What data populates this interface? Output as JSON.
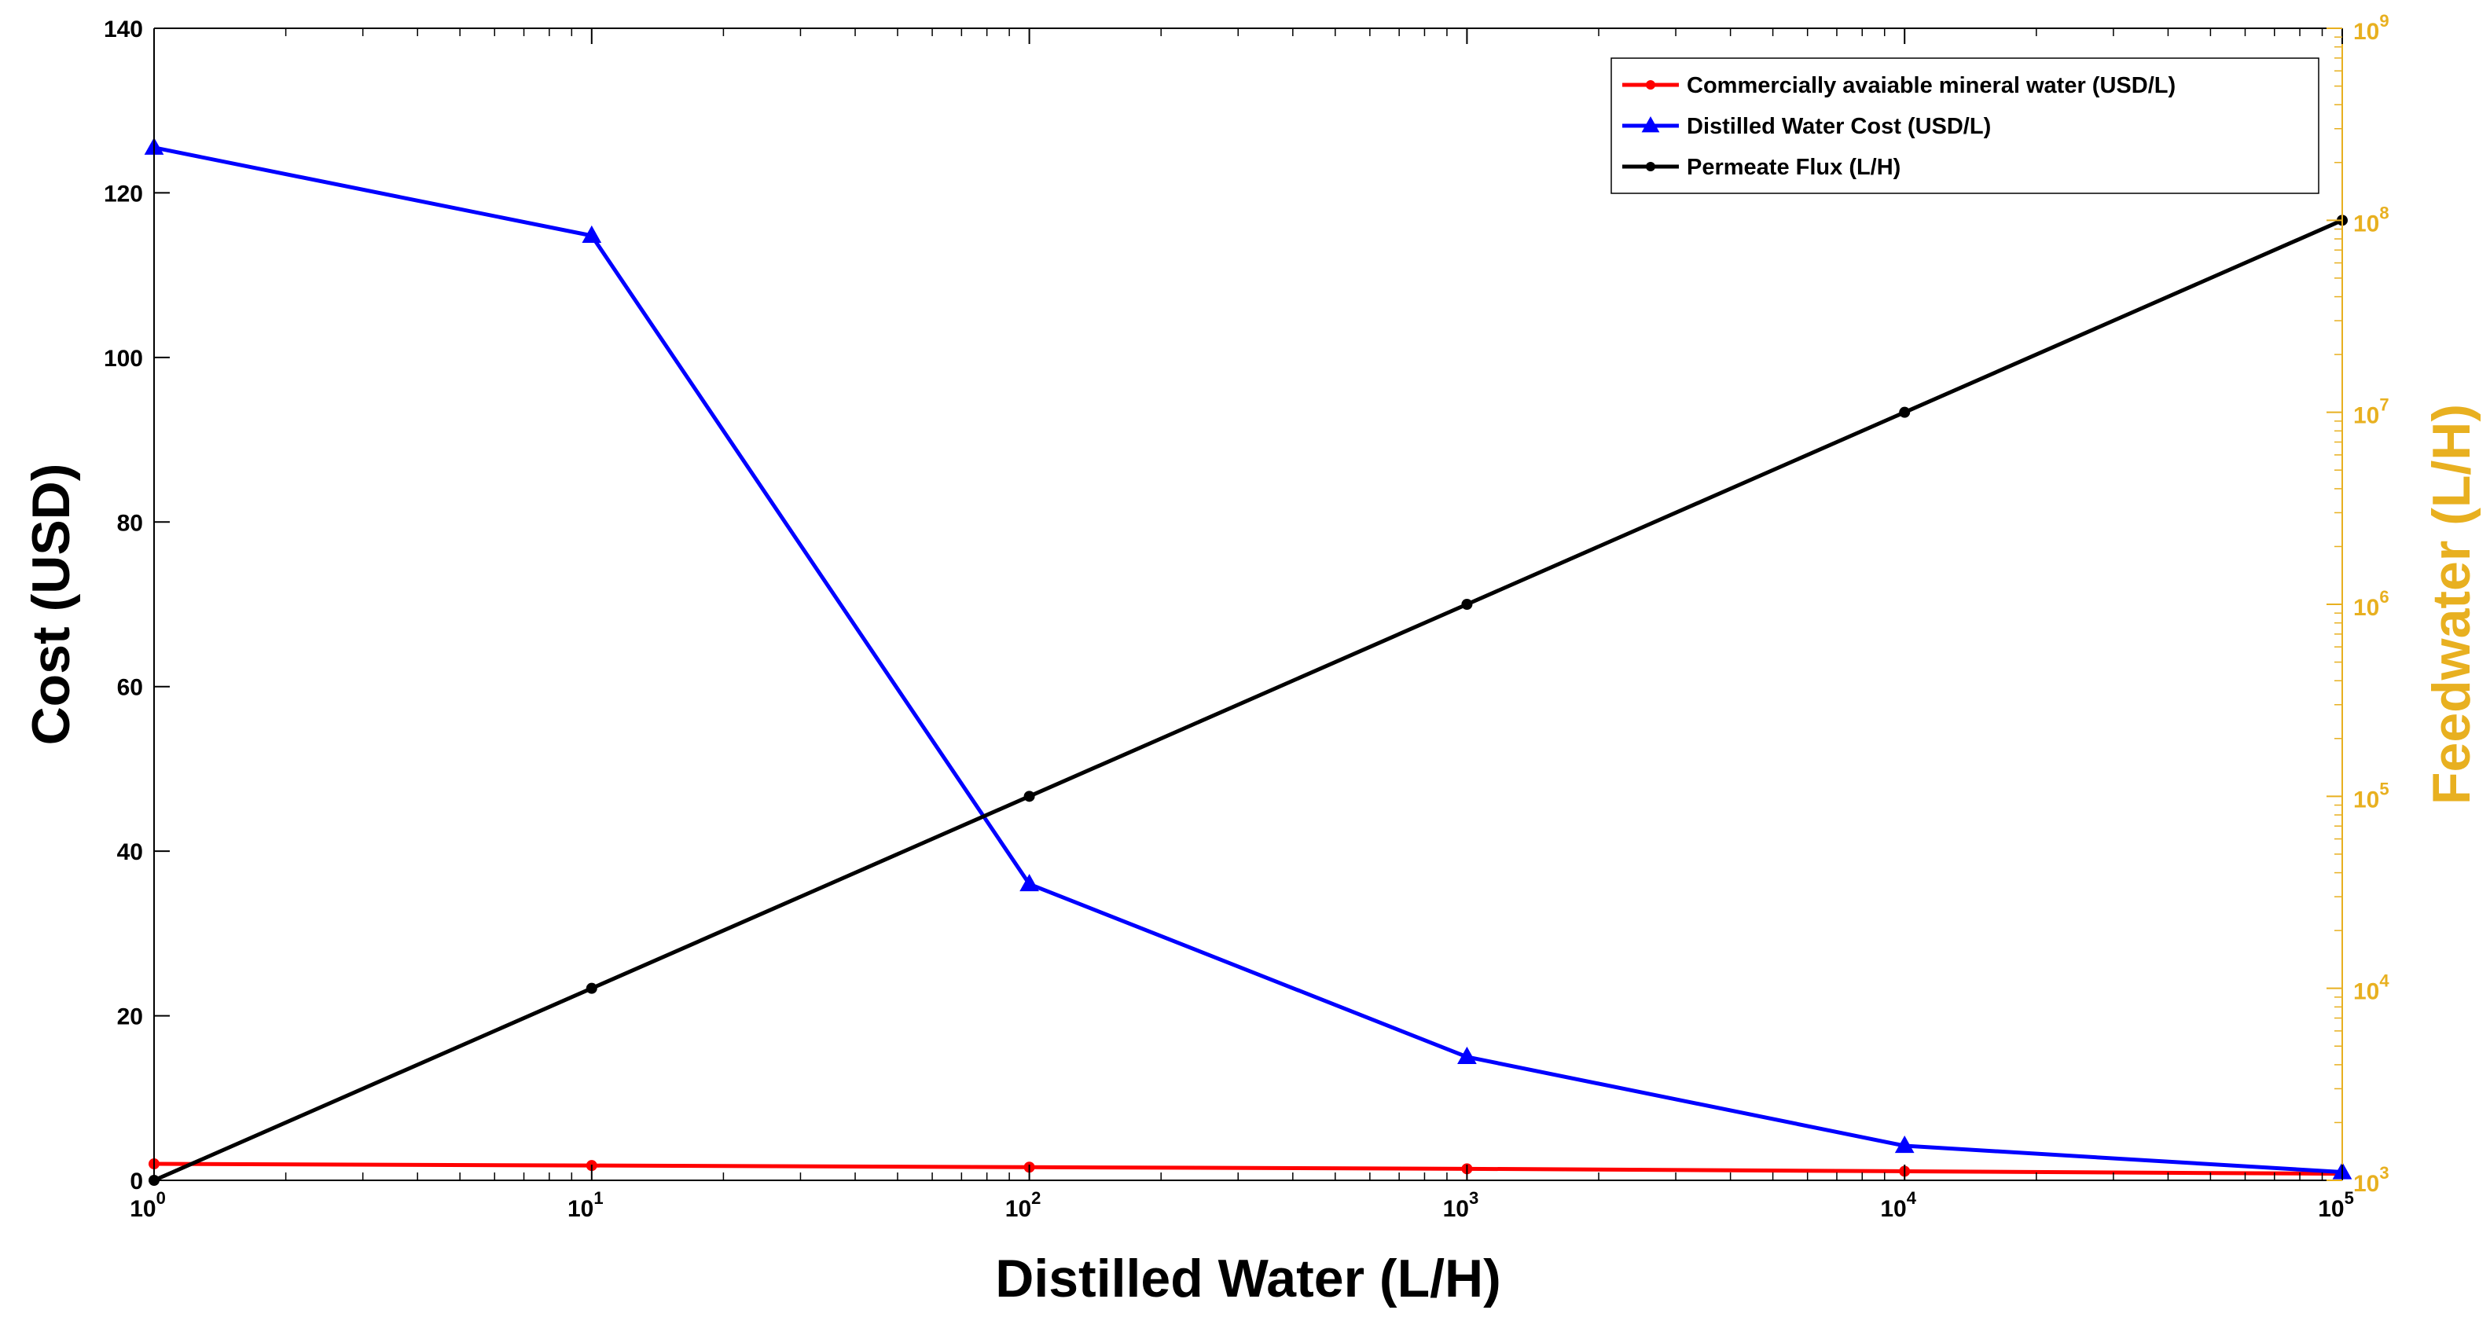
{
  "chart_data": {
    "type": "line",
    "title": "",
    "xlabel": "Distilled Water (L/H)",
    "ylabel_left": "Cost (USD)",
    "ylabel_right": "Feedwater (L/H)",
    "x_scale": "log",
    "xlim": [
      1,
      100000
    ],
    "ylim_left": [
      0,
      140
    ],
    "ylim_right": [
      1000,
      1000000000
    ],
    "y_right_scale": "log",
    "x": [
      1,
      10,
      100,
      1000,
      10000,
      100000
    ],
    "x_ticks": [
      {
        "value": 1,
        "base": "10",
        "exp": "0"
      },
      {
        "value": 10,
        "base": "10",
        "exp": "1"
      },
      {
        "value": 100,
        "base": "10",
        "exp": "2"
      },
      {
        "value": 1000,
        "base": "10",
        "exp": "3"
      },
      {
        "value": 10000,
        "base": "10",
        "exp": "4"
      },
      {
        "value": 100000,
        "base": "10",
        "exp": "5"
      }
    ],
    "y_left_ticks": [
      {
        "value": 0,
        "label": "0"
      },
      {
        "value": 20,
        "label": "20"
      },
      {
        "value": 40,
        "label": "40"
      },
      {
        "value": 60,
        "label": "60"
      },
      {
        "value": 80,
        "label": "80"
      },
      {
        "value": 100,
        "label": "100"
      },
      {
        "value": 120,
        "label": "120"
      },
      {
        "value": 140,
        "label": "140"
      }
    ],
    "y_right_ticks": [
      {
        "value": 1000,
        "base": "10",
        "exp": "3"
      },
      {
        "value": 10000,
        "base": "10",
        "exp": "4"
      },
      {
        "value": 100000,
        "base": "10",
        "exp": "5"
      },
      {
        "value": 1000000,
        "base": "10",
        "exp": "6"
      },
      {
        "value": 10000000,
        "base": "10",
        "exp": "7"
      },
      {
        "value": 100000000,
        "base": "10",
        "exp": "8"
      },
      {
        "value": 1000000000,
        "base": "10",
        "exp": "9"
      }
    ],
    "series": [
      {
        "name": "Commercially avaiable mineral water (USD/L)",
        "axis": "left",
        "color": "#ff0000",
        "marker": "dot",
        "values": [
          2,
          1.8,
          1.6,
          1.4,
          1.1,
          0.8
        ]
      },
      {
        "name": "Distilled Water Cost (USD/L)",
        "axis": "left",
        "color": "#0000ff",
        "marker": "triangle",
        "values": [
          125.5,
          114.8,
          36,
          15,
          4.2,
          1
        ]
      },
      {
        "name": "Permeate Flux (L/H)",
        "axis": "right",
        "color": "#000000",
        "marker": "dot",
        "values": [
          1000,
          10000,
          100000,
          1000000,
          10000000,
          100000000
        ]
      }
    ],
    "legend_position": "top-right",
    "colors": {
      "left_axis": "#000000",
      "right_axis": "#e8b020"
    }
  }
}
